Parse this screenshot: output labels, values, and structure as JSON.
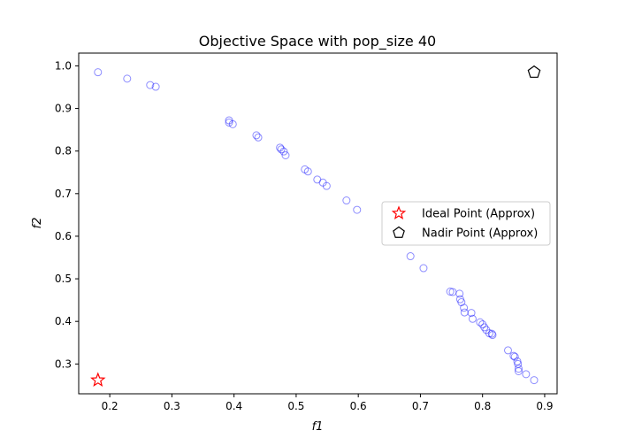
{
  "chart_data": {
    "type": "scatter",
    "title": "Objective Space with pop_size 40",
    "xlabel": "f1",
    "ylabel": "f2",
    "xlim": [
      0.15,
      0.92
    ],
    "ylim": [
      0.23,
      1.03
    ],
    "xticks": [
      0.2,
      0.3,
      0.4,
      0.5,
      0.6,
      0.7,
      0.8,
      0.9
    ],
    "yticks": [
      0.3,
      0.4,
      0.5,
      0.6,
      0.7,
      0.8,
      0.9,
      1.0
    ],
    "xtick_labels": [
      "0.2",
      "0.3",
      "0.4",
      "0.5",
      "0.6",
      "0.7",
      "0.8",
      "0.9"
    ],
    "ytick_labels": [
      "0.3",
      "0.4",
      "0.5",
      "0.6",
      "0.7",
      "0.8",
      "0.9",
      "1.0"
    ],
    "grid": false,
    "legend_position": "center-right",
    "series": [
      {
        "marker": "circle-hollow",
        "color": "#0000ff",
        "x": [
          0.181,
          0.228,
          0.265,
          0.274,
          0.392,
          0.392,
          0.398,
          0.436,
          0.439,
          0.474,
          0.476,
          0.48,
          0.483,
          0.514,
          0.519,
          0.534,
          0.543,
          0.549,
          0.581,
          0.598,
          0.684,
          0.705,
          0.748,
          0.752,
          0.763,
          0.764,
          0.766,
          0.77,
          0.771,
          0.782,
          0.784,
          0.796,
          0.8,
          0.803,
          0.806,
          0.811,
          0.815,
          0.816,
          0.841,
          0.85,
          0.852,
          0.856,
          0.857,
          0.858,
          0.858,
          0.87,
          0.883
        ],
        "y": [
          0.985,
          0.97,
          0.955,
          0.951,
          0.872,
          0.867,
          0.863,
          0.837,
          0.832,
          0.808,
          0.804,
          0.799,
          0.79,
          0.757,
          0.752,
          0.733,
          0.726,
          0.718,
          0.684,
          0.662,
          0.553,
          0.525,
          0.47,
          0.469,
          0.465,
          0.452,
          0.445,
          0.432,
          0.421,
          0.42,
          0.406,
          0.398,
          0.393,
          0.386,
          0.38,
          0.372,
          0.371,
          0.368,
          0.332,
          0.319,
          0.317,
          0.306,
          0.3,
          0.289,
          0.283,
          0.276,
          0.262
        ]
      }
    ],
    "special_points": [
      {
        "name": "Ideal Point (Approx)",
        "marker": "star-hollow",
        "color": "#ff0000",
        "x": 0.181,
        "y": 0.262
      },
      {
        "name": "Nadir Point (Approx)",
        "marker": "pentagon-hollow",
        "color": "#000000",
        "x": 0.883,
        "y": 0.985
      }
    ]
  }
}
